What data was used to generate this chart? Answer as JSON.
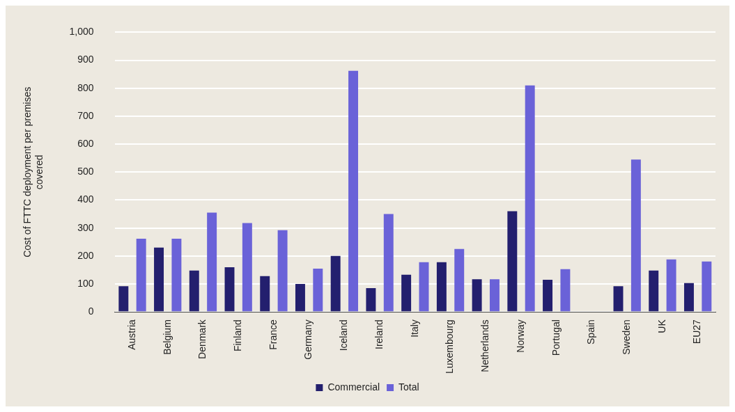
{
  "chart_data": {
    "type": "bar",
    "ylabel": "Cost of FTTC deployment per premises covered",
    "categories": [
      "Austria",
      "Belgium",
      "Denmark",
      "Finland",
      "France",
      "Germany",
      "Iceland",
      "Ireland",
      "Italy",
      "Luxembourg",
      "Netherlands",
      "Norway",
      "Portugal",
      "Spain",
      "Sweden",
      "UK",
      "EU27"
    ],
    "series": [
      {
        "name": "Commercial",
        "color": "#231f6e",
        "values": [
          92,
          230,
          148,
          160,
          128,
          100,
          200,
          85,
          133,
          178,
          117,
          360,
          115,
          null,
          92,
          148,
          103
        ]
      },
      {
        "name": "Total",
        "color": "#6a62d8",
        "values": [
          262,
          262,
          355,
          318,
          292,
          155,
          862,
          350,
          178,
          225,
          117,
          810,
          153,
          null,
          545,
          188,
          180
        ]
      }
    ],
    "ylim": [
      0,
      1000
    ],
    "yticks": [
      0,
      100,
      200,
      300,
      400,
      500,
      600,
      700,
      800,
      900,
      {
        "value": 1000,
        "label": "1,000"
      }
    ],
    "grid": "y",
    "legend": "bottom"
  }
}
